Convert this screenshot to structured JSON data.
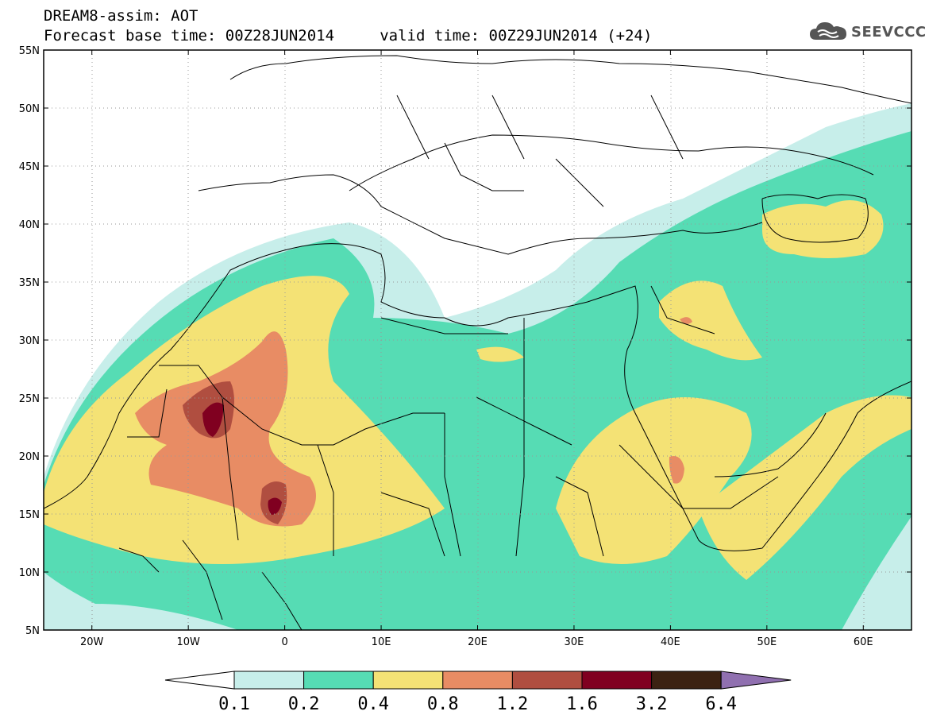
{
  "header": {
    "title_line1": "DREAM8-assim: AOT",
    "title_line2": "Forecast base time: 00Z28JUN2014     valid time: 00Z29JUN2014 (+24)"
  },
  "logo": {
    "icon": "cloud-icon",
    "text": "SEEVCCC"
  },
  "map": {
    "lon_range": [
      -25,
      65
    ],
    "lat_range": [
      5,
      55
    ],
    "lat_labels": [
      "55N",
      "50N",
      "45N",
      "40N",
      "35N",
      "30N",
      "25N",
      "20N",
      "15N",
      "10N",
      "5N"
    ],
    "lon_labels": [
      "20W",
      "10W",
      "0",
      "10E",
      "20E",
      "30E",
      "40E",
      "50E",
      "60E"
    ],
    "grid": "dotted"
  },
  "colorbar": {
    "labels": [
      "0.1",
      "0.2",
      "0.4",
      "0.8",
      "1.2",
      "1.6",
      "3.2",
      "6.4"
    ],
    "colors": [
      "#ffffff",
      "#c7eeea",
      "#56dcb4",
      "#f4e275",
      "#e88c64",
      "#b04e40",
      "#800020",
      "#3c2212",
      "#9070b0"
    ]
  }
}
